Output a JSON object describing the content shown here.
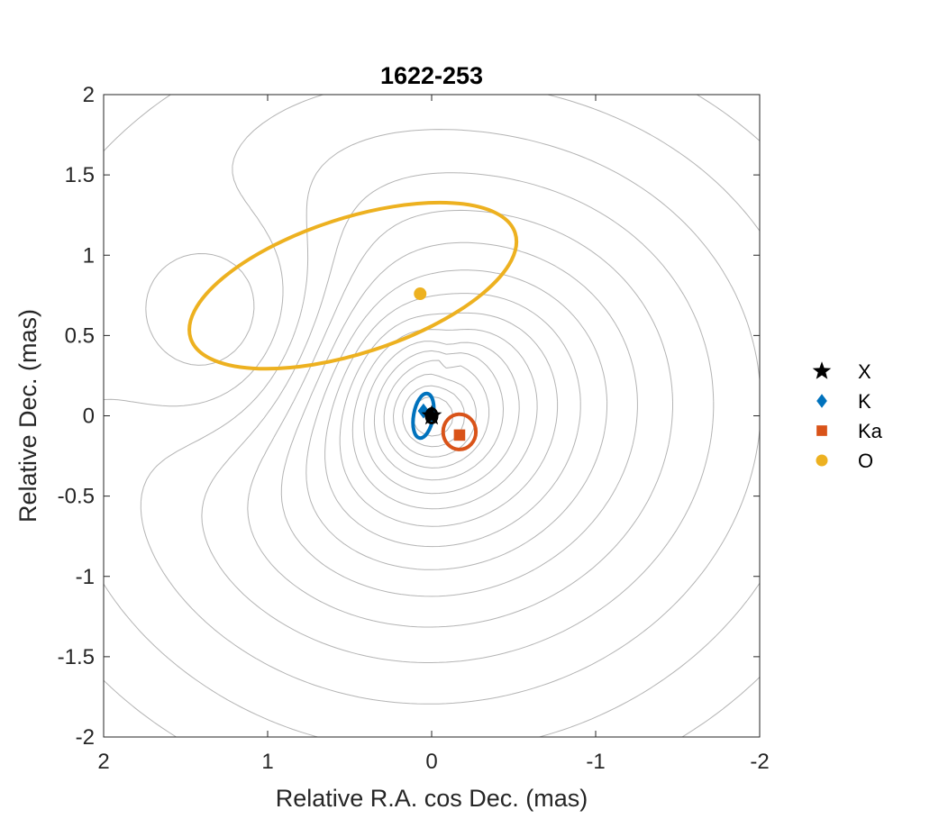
{
  "chart_data": {
    "type": "scatter",
    "title": "1622-253",
    "xlabel": "Relative R.A. cos Dec. (mas)",
    "ylabel": "Relative Dec. (mas)",
    "xlim": [
      2,
      -2
    ],
    "ylim": [
      -2,
      2
    ],
    "x_reversed": true,
    "xticks": [
      2,
      1,
      0,
      -1,
      -2
    ],
    "yticks": [
      -2,
      -1.5,
      -1,
      -0.5,
      0,
      0.5,
      1,
      1.5,
      2
    ],
    "xtick_labels": [
      "2",
      "1",
      "0",
      "-1",
      "-2"
    ],
    "ytick_labels": [
      "-2",
      "-1.5",
      "-1",
      "-0.5",
      "0",
      "0.5",
      "1",
      "1.5",
      "2"
    ],
    "grid": false,
    "legend_position": "outside-right",
    "background": "contour map (gray, concentric around origin)",
    "series": [
      {
        "name": "X",
        "marker": "star",
        "color": "#000000",
        "x": [
          0.0
        ],
        "y": [
          0.0
        ],
        "error_ellipse": {
          "a": 0.02,
          "b": 0.02,
          "angle_deg": 0
        }
      },
      {
        "name": "K",
        "marker": "diamond",
        "color": "#0072BD",
        "x": [
          0.05
        ],
        "y": [
          0.03
        ],
        "error_ellipse": {
          "a": 0.06,
          "b": 0.14,
          "angle_deg": -10
        }
      },
      {
        "name": "Ka",
        "marker": "square",
        "color": "#D95319",
        "x": [
          -0.17
        ],
        "y": [
          -0.12
        ],
        "error_ellipse": {
          "a": 0.1,
          "b": 0.11,
          "angle_deg": 0
        }
      },
      {
        "name": "O",
        "marker": "circle",
        "color": "#EDB120",
        "x": [
          0.07
        ],
        "y": [
          0.76
        ],
        "error_ellipse": {
          "a": 1.04,
          "b": 0.42,
          "angle_deg": 18
        }
      }
    ]
  }
}
